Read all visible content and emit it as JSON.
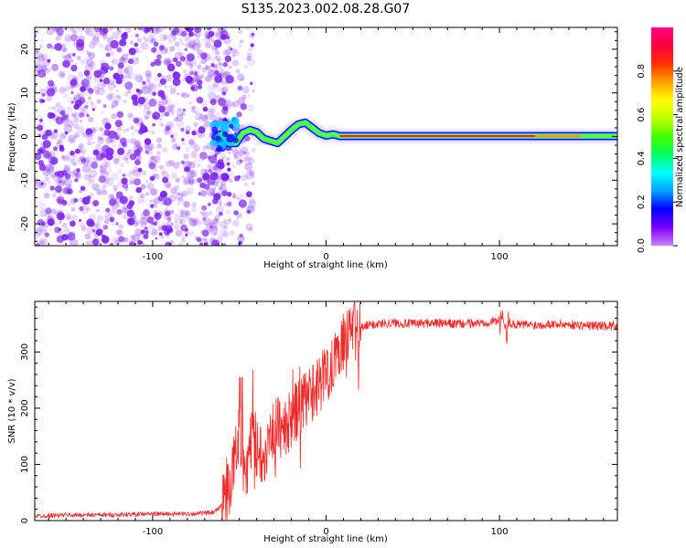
{
  "figure_title": "S135.2023.002.08.28.G07",
  "colors": {
    "snr_line": "#ee2a2a",
    "noise_purple": "#8c3cf0",
    "axis": "#000000",
    "background": "#ffffff"
  },
  "chart_data": [
    {
      "type": "heatmap",
      "xlabel": "Height of straight line (km)",
      "ylabel": "Frequency (Hz)",
      "xlim": [
        -168,
        168
      ],
      "ylim": [
        -25,
        25
      ],
      "xticks": [
        -100,
        0,
        100
      ],
      "yticks": [
        -20,
        -10,
        0,
        10,
        20
      ],
      "grid": false,
      "colorbar": {
        "label": "Normalized spectral amplitude",
        "range": [
          0,
          1
        ],
        "ticks": [
          "0.0",
          "0.2",
          "0.4",
          "0.6",
          "0.8"
        ],
        "tick_values": [
          0,
          0.2,
          0.4,
          0.6,
          0.8
        ],
        "colormap": [
          "#cc80ff",
          "#7f00ff",
          "#0000ff",
          "#00a0ff",
          "#00ffff",
          "#00ff60",
          "#40ff00",
          "#c0ff00",
          "#ffff00",
          "#ffa000",
          "#ff3000",
          "#ff0040",
          "#ff0080"
        ]
      },
      "noise_region_x": [
        -168,
        -55
      ],
      "signal_track": {
        "x": [
          -65,
          -60,
          -56,
          -52,
          -48,
          -44,
          -40,
          -36,
          -32,
          -28,
          -24,
          -20,
          -16,
          -12,
          -8,
          -4,
          0,
          4,
          8,
          168
        ],
        "freq": [
          0,
          0.5,
          -1.5,
          -1.5,
          0.8,
          1.5,
          1.0,
          -0.5,
          -1.0,
          -1.5,
          0.0,
          1.5,
          2.8,
          3.2,
          2.0,
          0.8,
          0.2,
          0.5,
          0.1,
          0.1
        ]
      }
    },
    {
      "type": "line",
      "xlabel": "Height of straight line (km)",
      "ylabel": "SNR (10 * v/v)",
      "xlim": [
        -168,
        168
      ],
      "ylim": [
        0,
        390
      ],
      "xticks": [
        -100,
        0,
        100
      ],
      "yticks": [
        0,
        100,
        200,
        300
      ],
      "grid": false,
      "series": [
        {
          "x": [
            -168,
            -150,
            -125,
            -100,
            -80,
            -65,
            -62,
            -58,
            -55,
            -52,
            -50,
            -48,
            -46,
            -44,
            -42,
            -40,
            -36,
            -32,
            -28,
            -24,
            -20,
            -16,
            -12,
            -8,
            -4,
            0,
            4,
            8,
            12,
            16,
            20,
            25,
            30,
            40,
            50,
            60,
            70,
            80,
            90,
            95,
            100,
            102,
            103,
            105,
            110,
            120,
            130,
            140,
            150,
            160,
            168
          ],
          "y": [
            8,
            10,
            10,
            12,
            12,
            14,
            20,
            40,
            70,
            120,
            170,
            110,
            70,
            130,
            170,
            130,
            120,
            150,
            170,
            160,
            180,
            200,
            210,
            230,
            245,
            260,
            285,
            310,
            325,
            335,
            342,
            348,
            350,
            352,
            350,
            352,
            350,
            350,
            352,
            354,
            356,
            360,
            345,
            352,
            349,
            348,
            350,
            349,
            347,
            347,
            347
          ]
        }
      ]
    }
  ]
}
